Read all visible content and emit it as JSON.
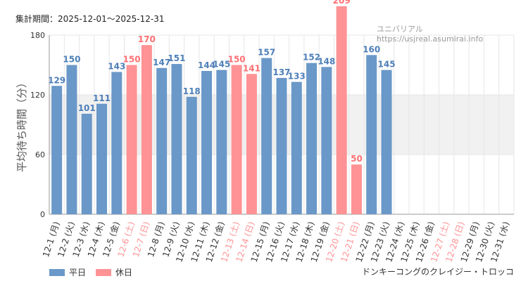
{
  "period_text": "集計期間：2025-12-01〜2025-12-31",
  "source_text": "ユニバリアル  https://usjreal.asumirai.info",
  "attraction_name": "ドンキーコングのクレイジー・トロッコ",
  "legend": [
    {
      "label": "平日",
      "color": "#6a98c8"
    },
    {
      "label": "休日",
      "color": "#ff9294"
    }
  ],
  "colors": {
    "weekday": "#6a98c8",
    "holiday": "#ff9294",
    "weekday_value": "#4d7fb8",
    "holiday_value": "#ff6f73",
    "band": "#f1f1f1",
    "grid": "#e6e6e6"
  },
  "chart_data": {
    "type": "bar",
    "title": "",
    "xlabel": "",
    "ylabel": "平均待ち時間（分）",
    "ylim": [
      0,
      180
    ],
    "yticks": [
      0,
      60,
      120,
      180
    ],
    "band": [
      60,
      120
    ],
    "categories": [
      "12-1 (月)",
      "12-2 (火)",
      "12-3 (水)",
      "12-4 (木)",
      "12-5 (金)",
      "12-6 (土)",
      "12-7 (日)",
      "12-8 (月)",
      "12-9 (火)",
      "12-10 (水)",
      "12-11 (木)",
      "12-12 (金)",
      "12-13 (土)",
      "12-14 (日)",
      "12-15 (月)",
      "12-16 (火)",
      "12-17 (水)",
      "12-18 (木)",
      "12-19 (金)",
      "12-20 (土)",
      "12-21 (日)",
      "12-22 (月)",
      "12-23 (火)",
      "12-24 (水)",
      "12-25 (木)",
      "12-26 (金)",
      "12-27 (土)",
      "12-28 (日)",
      "12-29 (月)",
      "12-30 (火)",
      "12-31 (水)"
    ],
    "values": [
      129,
      150,
      101,
      111,
      143,
      150,
      170,
      147,
      151,
      118,
      144,
      145,
      150,
      141,
      157,
      137,
      133,
      152,
      148,
      209,
      50,
      160,
      145,
      null,
      null,
      null,
      null,
      null,
      null,
      null,
      null
    ],
    "holiday": [
      false,
      false,
      false,
      false,
      false,
      true,
      true,
      false,
      false,
      false,
      false,
      false,
      true,
      true,
      false,
      false,
      false,
      false,
      false,
      true,
      true,
      false,
      false,
      false,
      false,
      false,
      true,
      true,
      false,
      false,
      false
    ],
    "series": [
      {
        "name": "平日"
      },
      {
        "name": "休日"
      }
    ]
  }
}
